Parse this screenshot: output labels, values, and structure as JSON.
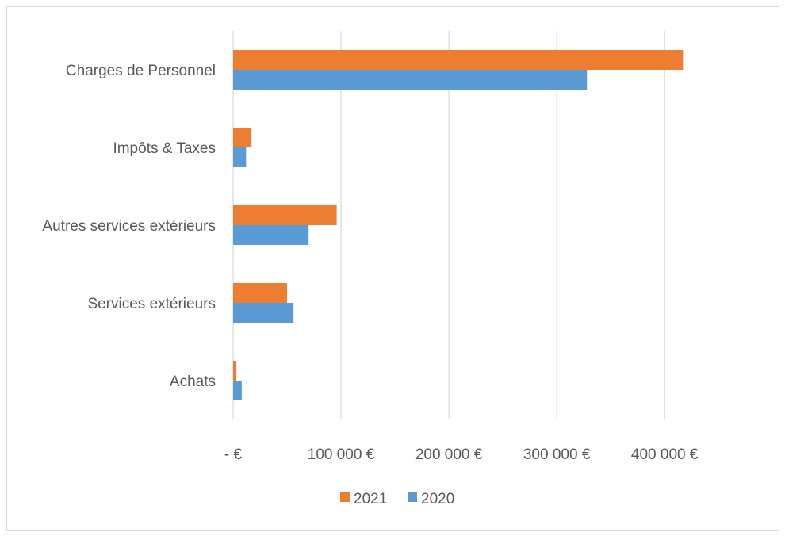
{
  "chart_data": {
    "type": "bar",
    "orientation": "horizontal",
    "categories": [
      "Achats",
      "Services extérieurs",
      "Autres services extérieurs",
      "Impôts & Taxes",
      "Charges de Personnel"
    ],
    "series": [
      {
        "name": "2021",
        "color": "#ED7D31",
        "values": [
          3000,
          50000,
          96000,
          17000,
          417000
        ]
      },
      {
        "name": "2020",
        "color": "#5B9BD5",
        "values": [
          8000,
          56000,
          70000,
          12000,
          328000
        ]
      }
    ],
    "xlim": [
      0,
      430000
    ],
    "xticks": [
      0,
      100000,
      200000,
      300000,
      400000
    ],
    "xtick_labels": [
      "-  €",
      "100 000 €",
      "200 000 €",
      "300 000 €",
      "400 000 €"
    ],
    "grid": true,
    "legend_position": "bottom",
    "title": "",
    "xlabel": "",
    "ylabel": ""
  }
}
